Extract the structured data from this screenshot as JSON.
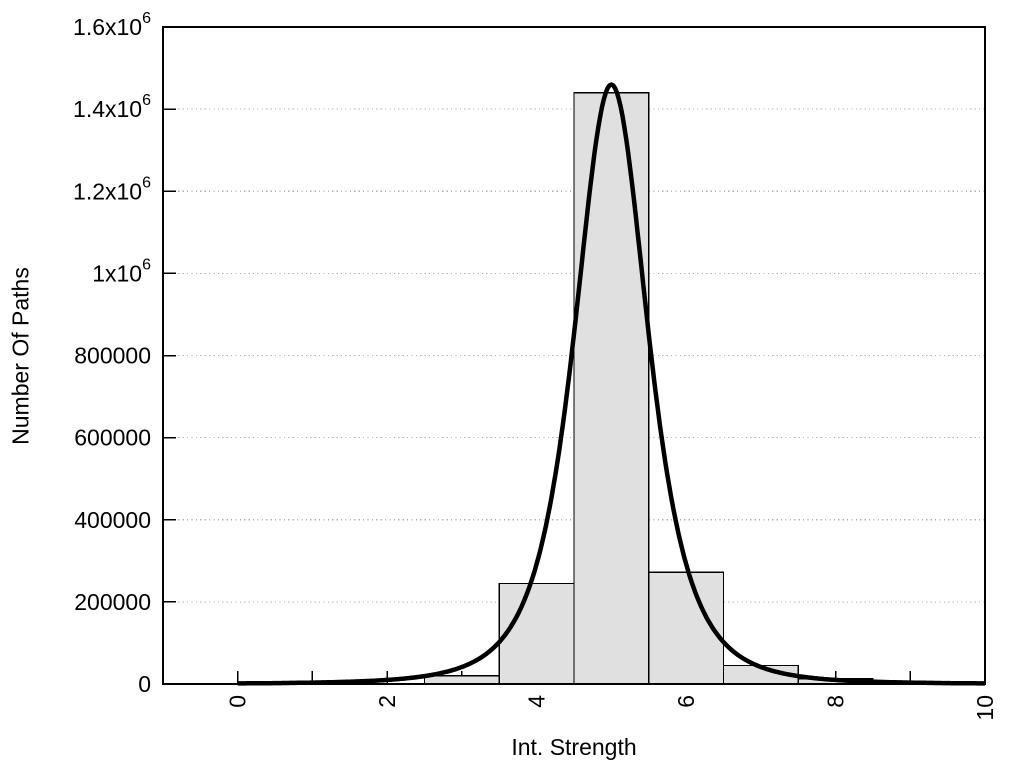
{
  "chart_data": {
    "type": "bar",
    "subtype": "histogram-with-fit-curve",
    "title": "",
    "xlabel": "Int. Strength",
    "ylabel": "Number Of Paths",
    "xlim": [
      -1,
      10
    ],
    "ylim": [
      0,
      1600000
    ],
    "legend": "none",
    "grid": {
      "horizontal": "dotted",
      "vertical": "none"
    },
    "bin_width": 1,
    "categories": [
      3,
      4,
      5,
      6,
      7,
      8
    ],
    "values": [
      20000,
      245000,
      1440000,
      272000,
      45000,
      13000
    ],
    "fit_curve": {
      "shape": "lorentzian-squared",
      "formula": "y = peak / (1 + ((x - center) / gamma)^2)^power",
      "peak": 1460000,
      "center": 5.0,
      "gamma": 0.9,
      "power": 2,
      "x_start": 0,
      "x_end": 10
    },
    "x_ticks": {
      "minor_step": 1,
      "major_step": 2,
      "labels": [
        "0",
        "2",
        "4",
        "6",
        "8",
        "10"
      ],
      "label_rotation_deg": -90
    },
    "y_ticks": [
      {
        "value": 0,
        "mantissa": "0",
        "exp": ""
      },
      {
        "value": 200000,
        "mantissa": "200000",
        "exp": ""
      },
      {
        "value": 400000,
        "mantissa": "400000",
        "exp": ""
      },
      {
        "value": 600000,
        "mantissa": "600000",
        "exp": ""
      },
      {
        "value": 800000,
        "mantissa": "800000",
        "exp": ""
      },
      {
        "value": 1000000,
        "mantissa": "1x10",
        "exp": "6"
      },
      {
        "value": 1200000,
        "mantissa": "1.2x10",
        "exp": "6"
      },
      {
        "value": 1400000,
        "mantissa": "1.4x10",
        "exp": "6"
      },
      {
        "value": 1600000,
        "mantissa": "1.6x10",
        "exp": "6"
      }
    ],
    "colors": {
      "background": "#ffffff",
      "bar_fill": "#e0e0e0",
      "bar_border": "#000000",
      "curve": "#000000",
      "grid": "#b0b0b0",
      "axis": "#000000",
      "text": "#000000"
    }
  }
}
